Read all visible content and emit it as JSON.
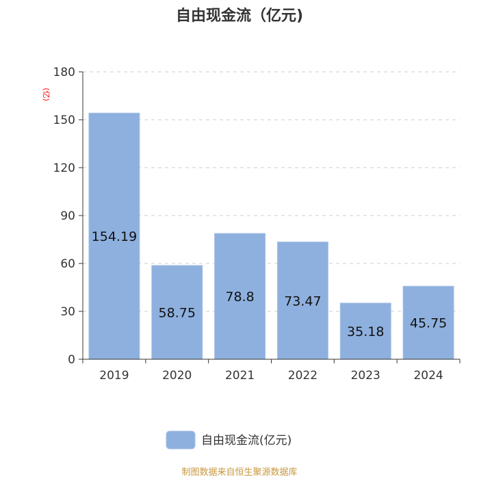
{
  "chart_data": {
    "type": "bar",
    "title": "自由现金流（亿元)",
    "ylabel": "(亿)",
    "categories": [
      "2019",
      "2020",
      "2021",
      "2022",
      "2023",
      "2024"
    ],
    "series": [
      {
        "name": "自由现金流(亿元)",
        "values": [
          154.19,
          58.75,
          78.8,
          73.47,
          35.18,
          45.75
        ],
        "labels": [
          "154.19",
          "58.75",
          "78.8",
          "73.47",
          "35.18",
          "45.75"
        ]
      }
    ],
    "ylim": [
      0,
      180
    ],
    "yticks": [
      0,
      30,
      60,
      90,
      120,
      150,
      180
    ],
    "grid": true,
    "legend": "bottom-center"
  },
  "colors": {
    "bar": "#8eb0de",
    "bar_border": "#a8c2e6",
    "grid": "#cccccc",
    "axis": "#333333"
  },
  "source": "制图数据来自恒生聚源数据库"
}
